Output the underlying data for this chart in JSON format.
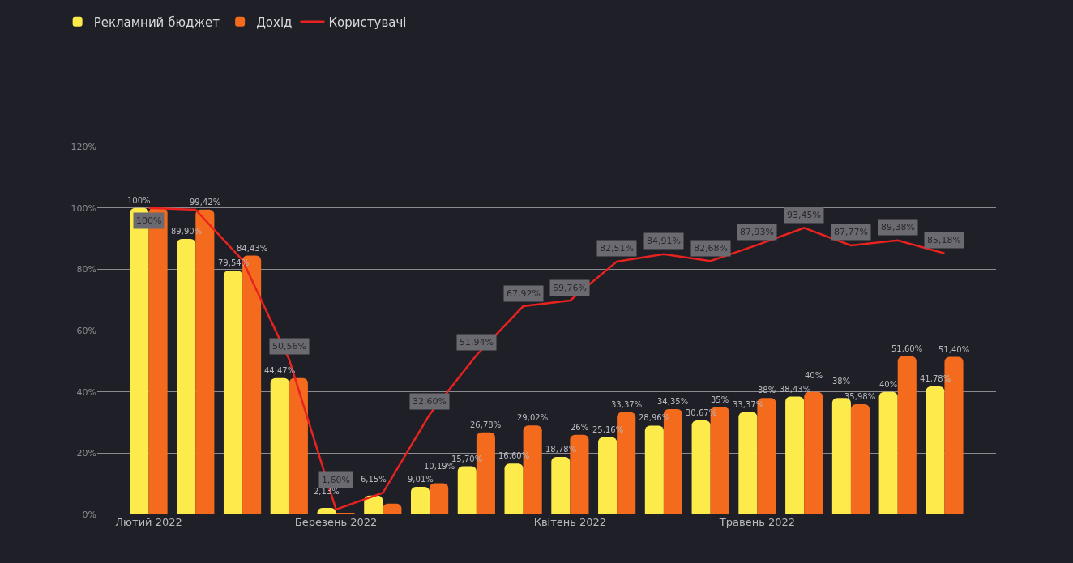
{
  "chart_data": {
    "type": "bar",
    "categories": [
      "Лютий 2022",
      null,
      null,
      null,
      "Березень 2022",
      null,
      null,
      null,
      null,
      "Квітень 2022",
      null,
      null,
      null,
      "Травень 2022",
      null,
      null,
      null,
      null
    ],
    "series": [
      {
        "name": "Рекламний бюджет",
        "color": "#fdeb4c",
        "values": [
          100,
          89.9,
          79.54,
          44.47,
          2.13,
          6.15,
          9.01,
          15.7,
          16.6,
          18.78,
          25.16,
          28.96,
          30.67,
          33.37,
          38.43,
          38,
          40,
          41.78
        ],
        "value_labels": [
          "100%",
          "89,90%",
          "79,54%",
          "44,47%",
          "2,13%",
          "6,15%",
          "9,01%",
          "15,70%",
          "16,60%",
          "18,78%",
          "25,16%",
          "28,96%",
          "30,67%",
          "33,37%",
          "38,43%",
          "38%",
          "40%",
          "41,78%"
        ]
      },
      {
        "name": "Дохід",
        "color": "#f46b1e",
        "values": [
          100,
          99.42,
          84.43,
          44.5,
          0.3,
          3.5,
          10.19,
          26.78,
          29.02,
          26,
          33.37,
          34.35,
          35,
          38,
          40,
          35.98,
          51.6,
          51.4
        ],
        "value_labels": [
          null,
          "99,42%",
          "84,43%",
          null,
          null,
          null,
          "10,19%",
          "26,78%",
          "29,02%",
          "26%",
          "33,37%",
          "34,35%",
          "35%",
          "38%",
          "40%",
          "35,98%",
          "51,60%",
          "51,40%"
        ]
      },
      {
        "name": "Користувачі",
        "type": "line",
        "color": "#e8231f",
        "values": [
          100,
          99.4,
          83,
          50.56,
          1.6,
          7,
          32.6,
          51.94,
          67.92,
          69.76,
          82.51,
          84.91,
          82.68,
          87.93,
          93.45,
          87.77,
          89.38,
          85.18
        ],
        "value_labels": [
          "100%",
          null,
          null,
          "50,56%",
          "1,60%",
          null,
          "32,60%",
          "51,94%",
          "67,92%",
          "69,76%",
          "82,51%",
          "84,91%",
          "82,68%",
          "87,93%",
          "93,45%",
          "87,77%",
          "89,38%",
          "85,18%"
        ]
      }
    ],
    "ylim": [
      0,
      120
    ],
    "yticks": [
      {
        "value": 0,
        "label": "0%"
      },
      {
        "value": 20,
        "label": "20%"
      },
      {
        "value": 40,
        "label": "40%"
      },
      {
        "value": 60,
        "label": "60%"
      },
      {
        "value": 80,
        "label": "80%"
      },
      {
        "value": 100,
        "label": "100%"
      },
      {
        "value": 120,
        "label": "120%"
      }
    ],
    "grid": "y",
    "legend": "top left",
    "marker": "none",
    "line_style": "solid"
  }
}
